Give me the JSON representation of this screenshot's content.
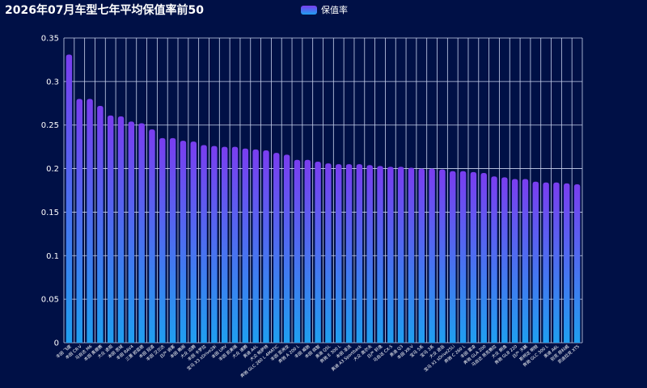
{
  "page": {
    "title": "2026年07月车型七年平均保值率前50",
    "legend_label": "保值率"
  },
  "colors": {
    "background": "#001046",
    "grid": "#c9d2ee",
    "bar_top": "#7a3df0",
    "bar_bottom": "#1f9ff0"
  },
  "chart_data": {
    "type": "bar",
    "title": "2026年07月车型七年平均保值率前50",
    "xlabel": "",
    "ylabel": "",
    "ylim": [
      0,
      0.35
    ],
    "yticks": [
      0,
      0.05,
      0.1,
      0.15,
      0.2,
      0.25,
      0.3,
      0.35
    ],
    "ytick_labels": [
      "0",
      "0.05",
      "0.1",
      "0.15",
      "0.2",
      "0.25",
      "0.3",
      "0.35"
    ],
    "grid": true,
    "legend_position": "top-center",
    "categories": [
      "丰田 飞度",
      "本田 CR-V",
      "马自达 M6",
      "本田 奥德赛",
      "大众 途观",
      "本田 思域",
      "丰田 RAV4",
      "三菱 欧蓝德",
      "本田 冠道",
      "丰田 汉兰达",
      "日产 逍客",
      "本田 雅阁",
      "大众 迈腾",
      "丰田 卡罗拉",
      "宝马 X3 xDrive28i",
      "本田 URV",
      "丰田 凯美瑞",
      "大众 速腾",
      "奥迪 A4L",
      "大众 帕萨特",
      "奔驰 GLC 260 L 4MATIC",
      "丰田 亚洲龙",
      "奔驰 A 200 L",
      "丰田 威驰",
      "本田 缤智",
      "奥迪 Q5L",
      "奔驰 E 300 L",
      "本田 凌派",
      "奥迪 A3 Sportback",
      "大众 高尔夫",
      "日产 轩逸",
      "马自达 CX-5",
      "奥迪 Q3",
      "本田 XR-V",
      "宝马 5系",
      "宝马 3系",
      "大众 途岳",
      "宝马 X1 sDrive25Li",
      "奔驰 C 260 L",
      "丰田 雷凌",
      "奔驰 GLA 200",
      "马自达 昂克赛拉",
      "大众 朗逸",
      "奔驰 GLB 220",
      "日产 天籁",
      "斯柯达 明锐",
      "奔驰 GLC 300 L",
      "奥迪 A6L",
      "别克 昂科威",
      "凯迪拉克 XT5"
    ],
    "series": [
      {
        "name": "保值率",
        "values": [
          0.331,
          0.28,
          0.28,
          0.272,
          0.261,
          0.26,
          0.254,
          0.252,
          0.245,
          0.235,
          0.235,
          0.232,
          0.231,
          0.227,
          0.226,
          0.225,
          0.225,
          0.223,
          0.222,
          0.221,
          0.218,
          0.216,
          0.21,
          0.21,
          0.208,
          0.206,
          0.205,
          0.205,
          0.205,
          0.204,
          0.203,
          0.202,
          0.202,
          0.201,
          0.2,
          0.2,
          0.199,
          0.197,
          0.197,
          0.196,
          0.195,
          0.191,
          0.19,
          0.188,
          0.188,
          0.185,
          0.184,
          0.184,
          0.183,
          0.182
        ]
      }
    ]
  }
}
